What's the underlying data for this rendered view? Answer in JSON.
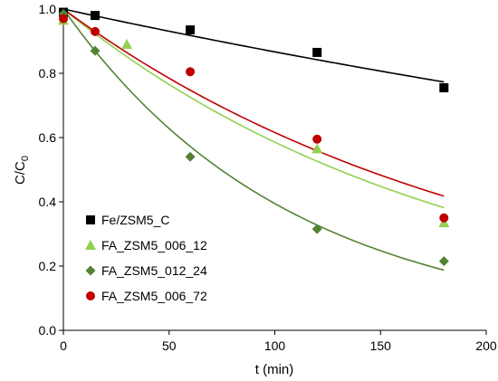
{
  "chart_data": {
    "type": "scatter",
    "title": "",
    "xlabel": "t (min)",
    "ylabel_main": "C/C",
    "ylabel_sub": "0",
    "xlim": [
      0,
      200
    ],
    "ylim": [
      0.0,
      1.0
    ],
    "xticks": [
      "0",
      "50",
      "100",
      "150",
      "200"
    ],
    "yticks": [
      "0.0",
      "0.2",
      "0.4",
      "0.6",
      "0.8",
      "1.0"
    ],
    "grid": false,
    "legend_position": "left-center",
    "series": [
      {
        "name": "Fe/ZSM5_C",
        "marker": "square",
        "color": "#000000",
        "points": [
          [
            0,
            0.99
          ],
          [
            15,
            0.98
          ],
          [
            60,
            0.935
          ],
          [
            120,
            0.865
          ],
          [
            180,
            0.755
          ]
        ],
        "fit_k": 0.00143
      },
      {
        "name": "FA_ZSM5_006_12",
        "marker": "triangle",
        "color": "#92D050",
        "line_color": "#92D050",
        "points": [
          [
            0,
            0.965
          ],
          [
            30,
            0.89
          ],
          [
            120,
            0.565
          ],
          [
            180,
            0.335
          ]
        ],
        "fit_k": 0.00535
      },
      {
        "name": "FA_ZSM5_012_24",
        "marker": "diamond",
        "color": "#548235",
        "points": [
          [
            0,
            0.985
          ],
          [
            15,
            0.87
          ],
          [
            60,
            0.54
          ],
          [
            120,
            0.315
          ],
          [
            180,
            0.215
          ]
        ],
        "fit_k": 0.0093
      },
      {
        "name": "FA_ZSM5_006_72",
        "marker": "circle",
        "color": "#C00000",
        "line_color": "#C00000",
        "points": [
          [
            0,
            0.97
          ],
          [
            15,
            0.93
          ],
          [
            60,
            0.805
          ],
          [
            120,
            0.595
          ],
          [
            180,
            0.35
          ]
        ],
        "fit_k": 0.00485
      }
    ]
  }
}
